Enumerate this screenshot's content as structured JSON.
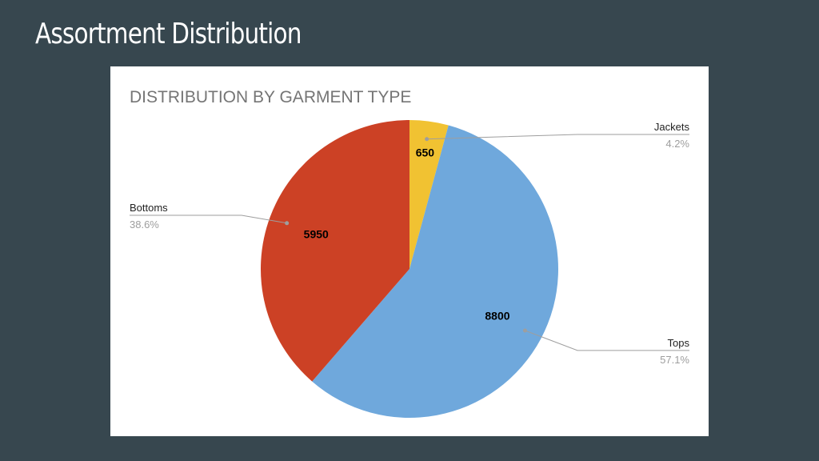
{
  "slide": {
    "title": "Assortment Distribution"
  },
  "colors": {
    "background": "#37474f",
    "panel": "#ffffff"
  },
  "chart_data": {
    "type": "pie",
    "title": "DISTRIBUTION BY GARMENT TYPE",
    "legend_placement": "outside labels with leader lines",
    "slices": [
      {
        "label": "Jackets",
        "value": 650,
        "percent": "4.2%",
        "color": "#f1c232"
      },
      {
        "label": "Tops",
        "value": 8800,
        "percent": "57.1%",
        "color": "#6fa8dc"
      },
      {
        "label": "Bottoms",
        "value": 5950,
        "percent": "38.6%",
        "color": "#cc4125"
      }
    ]
  }
}
